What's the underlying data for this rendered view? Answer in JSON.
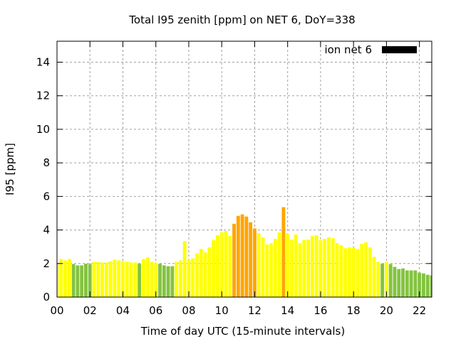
{
  "chart_data": {
    "type": "bar",
    "title": "Total I95 zenith [ppm] on NET 6, DoY=338",
    "xlabel": "Time of day UTC (15-minute intervals)",
    "ylabel": "I95 [ppm]",
    "xlim": [
      0,
      22.75
    ],
    "ylim": [
      0,
      15.25
    ],
    "grid": true,
    "legend": {
      "label": "ion net 6",
      "placement": "top-right",
      "color": "#000000"
    },
    "x_ticks": [
      0,
      2,
      4,
      6,
      8,
      10,
      12,
      14,
      16,
      18,
      20,
      22
    ],
    "x_tick_labels": [
      "00",
      "02",
      "04",
      "06",
      "08",
      "10",
      "12",
      "14",
      "16",
      "18",
      "20",
      "22"
    ],
    "y_ticks": [
      0,
      2,
      4,
      6,
      8,
      10,
      12,
      14
    ],
    "y_tick_labels": [
      "0",
      "2",
      "4",
      "6",
      "8",
      "10",
      "12",
      "14"
    ],
    "x_step_hours": 0.25,
    "color_scale": {
      "low": "#84c340",
      "mid": "#ffff00",
      "high": "#ffa500",
      "thresholds": [
        2,
        4
      ]
    },
    "values": [
      2.0,
      2.27,
      2.19,
      2.27,
      1.97,
      1.89,
      1.89,
      1.99,
      1.97,
      2.1,
      2.1,
      2.06,
      2.06,
      2.14,
      2.23,
      2.19,
      2.14,
      2.1,
      2.06,
      2.06,
      1.99,
      2.27,
      2.36,
      2.1,
      2.06,
      1.99,
      1.89,
      1.84,
      1.84,
      2.1,
      2.19,
      3.34,
      2.23,
      2.31,
      2.61,
      2.87,
      2.66,
      2.96,
      3.39,
      3.69,
      3.86,
      3.94,
      3.64,
      4.37,
      4.84,
      4.93,
      4.8,
      4.46,
      4.09,
      3.81,
      3.56,
      3.13,
      3.21,
      3.47,
      3.86,
      5.36,
      3.77,
      3.43,
      3.73,
      3.21,
      3.39,
      3.43,
      3.64,
      3.69,
      3.39,
      3.47,
      3.56,
      3.51,
      3.21,
      3.09,
      2.91,
      2.96,
      2.96,
      2.87,
      3.17,
      3.26,
      2.96,
      2.4,
      2.1,
      1.99,
      2.1,
      1.97,
      1.8,
      1.67,
      1.71,
      1.59,
      1.59,
      1.59,
      1.46,
      1.41,
      1.33,
      1.29
    ]
  }
}
